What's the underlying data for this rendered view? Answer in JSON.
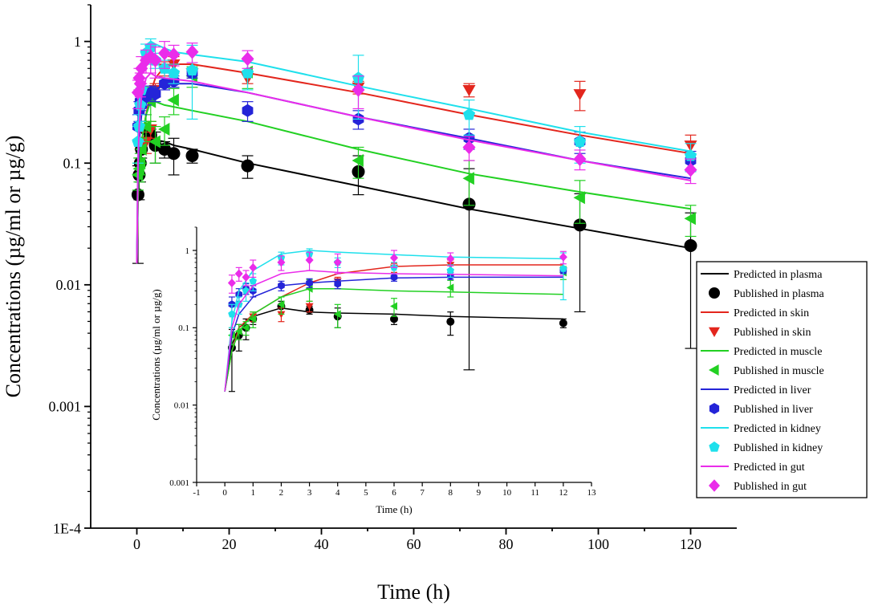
{
  "chart_data": [
    {
      "type": "line",
      "name": "main",
      "xlabel": "Time (h)",
      "ylabel": "Concentrations (µg/ml or µg/g)",
      "xlim": [
        -10,
        130
      ],
      "ylim": [
        0.0001,
        2
      ],
      "yscale": "log",
      "xticks": [
        0,
        20,
        40,
        60,
        80,
        100,
        120
      ],
      "xtick_labels": [
        "0",
        "20",
        "40",
        "60",
        "80",
        "100",
        "120"
      ],
      "yticks": [
        0.0001,
        0.001,
        0.01,
        0.1,
        1
      ],
      "ytick_labels": [
        "1E-4",
        "0.001",
        "0.01",
        "0.1",
        "1"
      ],
      "series": [
        {
          "name": "plasma",
          "color": "#000000",
          "marker": "circle",
          "predicted": {
            "x": [
              0,
              0.25,
              0.5,
              1,
              2,
              3,
              4,
              6,
              8,
              12,
              24,
              48,
              72,
              96,
              120
            ],
            "y": [
              0.015,
              0.06,
              0.1,
              0.14,
              0.18,
              0.16,
              0.155,
              0.15,
              0.14,
              0.13,
              0.1,
              0.065,
              0.042,
              0.029,
              0.02
            ]
          },
          "published": {
            "x": [
              0.25,
              0.5,
              0.75,
              1,
              2,
              3,
              4,
              6,
              8,
              12,
              24,
              48,
              72,
              96,
              120
            ],
            "y": [
              0.055,
              0.08,
              0.1,
              0.13,
              0.19,
              0.17,
              0.14,
              0.13,
              0.12,
              0.115,
              0.095,
              0.085,
              0.046,
              0.031,
              0.021
            ],
            "err": [
              0.04,
              0.03,
              0.03,
              0.02,
              0.03,
              0.02,
              0.04,
              0.02,
              0.04,
              0.015,
              0.02,
              0.03,
              0.044,
              0.025,
              0.018
            ]
          }
        },
        {
          "name": "skin",
          "color": "#e3261d",
          "marker": "triangle-down",
          "predicted": {
            "x": [
              0,
              0.25,
              0.5,
              1,
              2,
              3,
              4,
              6,
              8,
              12,
              24,
              48,
              72,
              96,
              120
            ],
            "y": [
              0.015,
              0.05,
              0.1,
              0.15,
              0.25,
              0.38,
              0.5,
              0.62,
              0.65,
              0.65,
              0.55,
              0.38,
              0.25,
              0.17,
              0.12
            ]
          },
          "published": {
            "x": [
              1,
              2,
              3,
              4,
              6,
              8,
              12,
              24,
              48,
              72,
              96,
              120
            ],
            "y": [
              0.14,
              0.15,
              0.19,
              0.4,
              0.6,
              0.65,
              0.55,
              0.5,
              0.42,
              0.4,
              0.37,
              0.14
            ],
            "err": [
              0.02,
              0.03,
              0.03,
              0.05,
              0.08,
              0.1,
              0.05,
              0.05,
              0.05,
              0.05,
              0.1,
              0.03
            ]
          }
        },
        {
          "name": "muscle",
          "color": "#22d022",
          "marker": "triangle-left",
          "predicted": {
            "x": [
              0,
              0.25,
              0.5,
              1,
              2,
              3,
              4,
              6,
              8,
              12,
              24,
              48,
              72,
              96,
              120
            ],
            "y": [
              0.015,
              0.05,
              0.09,
              0.15,
              0.25,
              0.32,
              0.32,
              0.3,
              0.29,
              0.27,
              0.22,
              0.13,
              0.082,
              0.058,
              0.042
            ]
          },
          "published": {
            "x": [
              0.25,
              0.5,
              0.75,
              1,
              2,
              3,
              4,
              6,
              8,
              12,
              24,
              48,
              72,
              96,
              120
            ],
            "y": [
              0.08,
              0.09,
              0.1,
              0.13,
              0.2,
              0.32,
              0.15,
              0.19,
              0.33,
              0.52,
              0.56,
              0.105,
              0.075,
              0.052,
              0.035
            ],
            "err": [
              0.02,
              0.02,
              0.02,
              0.03,
              0.05,
              0.1,
              0.05,
              0.05,
              0.08,
              0.1,
              0.15,
              0.03,
              0.03,
              0.02,
              0.01
            ]
          }
        },
        {
          "name": "liver",
          "color": "#2424d8",
          "marker": "hexagon",
          "predicted": {
            "x": [
              0,
              0.25,
              0.5,
              1,
              2,
              3,
              4,
              6,
              8,
              12,
              24,
              48,
              72,
              96,
              120
            ],
            "y": [
              0.015,
              0.08,
              0.15,
              0.25,
              0.35,
              0.38,
              0.4,
              0.44,
              0.45,
              0.45,
              0.38,
              0.24,
              0.16,
              0.105,
              0.075
            ]
          },
          "published": {
            "x": [
              0.25,
              0.5,
              0.75,
              1,
              2,
              3,
              4,
              6,
              8,
              12,
              24,
              48,
              72,
              96,
              120
            ],
            "y": [
              0.2,
              0.27,
              0.32,
              0.3,
              0.35,
              0.38,
              0.37,
              0.45,
              0.47,
              0.55,
              0.27,
              0.23,
              0.16,
              0.15,
              0.105
            ],
            "err": [
              0.05,
              0.05,
              0.05,
              0.05,
              0.05,
              0.05,
              0.05,
              0.05,
              0.05,
              0.05,
              0.05,
              0.04,
              0.03,
              0.03,
              0.02
            ]
          }
        },
        {
          "name": "kidney",
          "color": "#1fe0ec",
          "marker": "pentagon",
          "predicted": {
            "x": [
              0,
              0.25,
              0.5,
              1,
              2,
              3,
              4,
              6,
              8,
              12,
              24,
              48,
              72,
              96,
              120
            ],
            "y": [
              0.015,
              0.12,
              0.3,
              0.55,
              0.9,
              1.0,
              0.95,
              0.88,
              0.82,
              0.78,
              0.68,
              0.43,
              0.28,
              0.18,
              0.125
            ]
          },
          "published": {
            "x": [
              0.25,
              0.5,
              0.75,
              1,
              2,
              3,
              4,
              6,
              8,
              12,
              24,
              48,
              72,
              96,
              120
            ],
            "y": [
              0.15,
              0.2,
              0.3,
              0.4,
              0.8,
              0.9,
              0.7,
              0.6,
              0.55,
              0.58,
              0.55,
              0.5,
              0.25,
              0.15,
              0.115
            ],
            "err": [
              0.05,
              0.05,
              0.08,
              0.1,
              0.15,
              0.15,
              0.1,
              0.1,
              0.1,
              0.35,
              0.15,
              0.27,
              0.08,
              0.05,
              0.03
            ]
          }
        },
        {
          "name": "gut",
          "color": "#ea2cea",
          "marker": "diamond",
          "predicted": {
            "x": [
              0,
              0.25,
              0.5,
              1,
              2,
              3,
              4,
              6,
              8,
              12,
              24,
              48,
              72,
              96,
              120
            ],
            "y": [
              0.015,
              0.1,
              0.2,
              0.35,
              0.5,
              0.55,
              0.52,
              0.5,
              0.49,
              0.47,
              0.38,
              0.24,
              0.155,
              0.105,
              0.072
            ]
          },
          "published": {
            "x": [
              0.25,
              0.5,
              0.75,
              1,
              2,
              3,
              4,
              6,
              8,
              12,
              24,
              48,
              72,
              96,
              120
            ],
            "y": [
              0.38,
              0.5,
              0.45,
              0.6,
              0.7,
              0.75,
              0.7,
              0.8,
              0.78,
              0.82,
              0.72,
              0.4,
              0.135,
              0.108,
              0.088
            ],
            "err": [
              0.1,
              0.1,
              0.1,
              0.15,
              0.15,
              0.2,
              0.2,
              0.2,
              0.15,
              0.15,
              0.12,
              0.12,
              0.03,
              0.02,
              0.02
            ]
          }
        }
      ],
      "legend": {
        "position": "right",
        "entries": [
          {
            "label": "Predicted in plasma",
            "kind": "line",
            "series": 0
          },
          {
            "label": "Published in plasma",
            "kind": "marker",
            "series": 0
          },
          {
            "label": "Predicted in skin",
            "kind": "line",
            "series": 1
          },
          {
            "label": "Published in skin",
            "kind": "marker",
            "series": 1
          },
          {
            "label": "Predicted in muscle",
            "kind": "line",
            "series": 2
          },
          {
            "label": "Published in muscle",
            "kind": "marker",
            "series": 2
          },
          {
            "label": "Predicted in liver",
            "kind": "line",
            "series": 3
          },
          {
            "label": "Published in  liver",
            "kind": "marker",
            "series": 3
          },
          {
            "label": "Predicted in kidney",
            "kind": "line",
            "series": 4
          },
          {
            "label": "Published in  kidney",
            "kind": "marker",
            "series": 4
          },
          {
            "label": "Predicted in gut",
            "kind": "line",
            "series": 5
          },
          {
            "label": "Published in  gut",
            "kind": "marker",
            "series": 5
          }
        ]
      }
    },
    {
      "type": "line",
      "name": "inset",
      "xlabel": "Time (h)",
      "ylabel": "Concentrations (µg/ml or µg/g)",
      "xlim": [
        -1,
        13
      ],
      "ylim": [
        0.001,
        2
      ],
      "yscale": "log",
      "xticks": [
        -1,
        0,
        1,
        2,
        3,
        4,
        5,
        6,
        7,
        8,
        9,
        10,
        11,
        12,
        13
      ],
      "xtick_labels": [
        "-1",
        "0",
        "1",
        "2",
        "3",
        "4",
        "5",
        "6",
        "7",
        "8",
        "9",
        "10",
        "11",
        "12",
        "13"
      ],
      "yticks": [
        0.001,
        0.01,
        0.1,
        1
      ],
      "ytick_labels": [
        "0.001",
        "0.01",
        "0.1",
        "1"
      ],
      "series_note": "same series as main chart, shown for 0-12 h"
    }
  ]
}
